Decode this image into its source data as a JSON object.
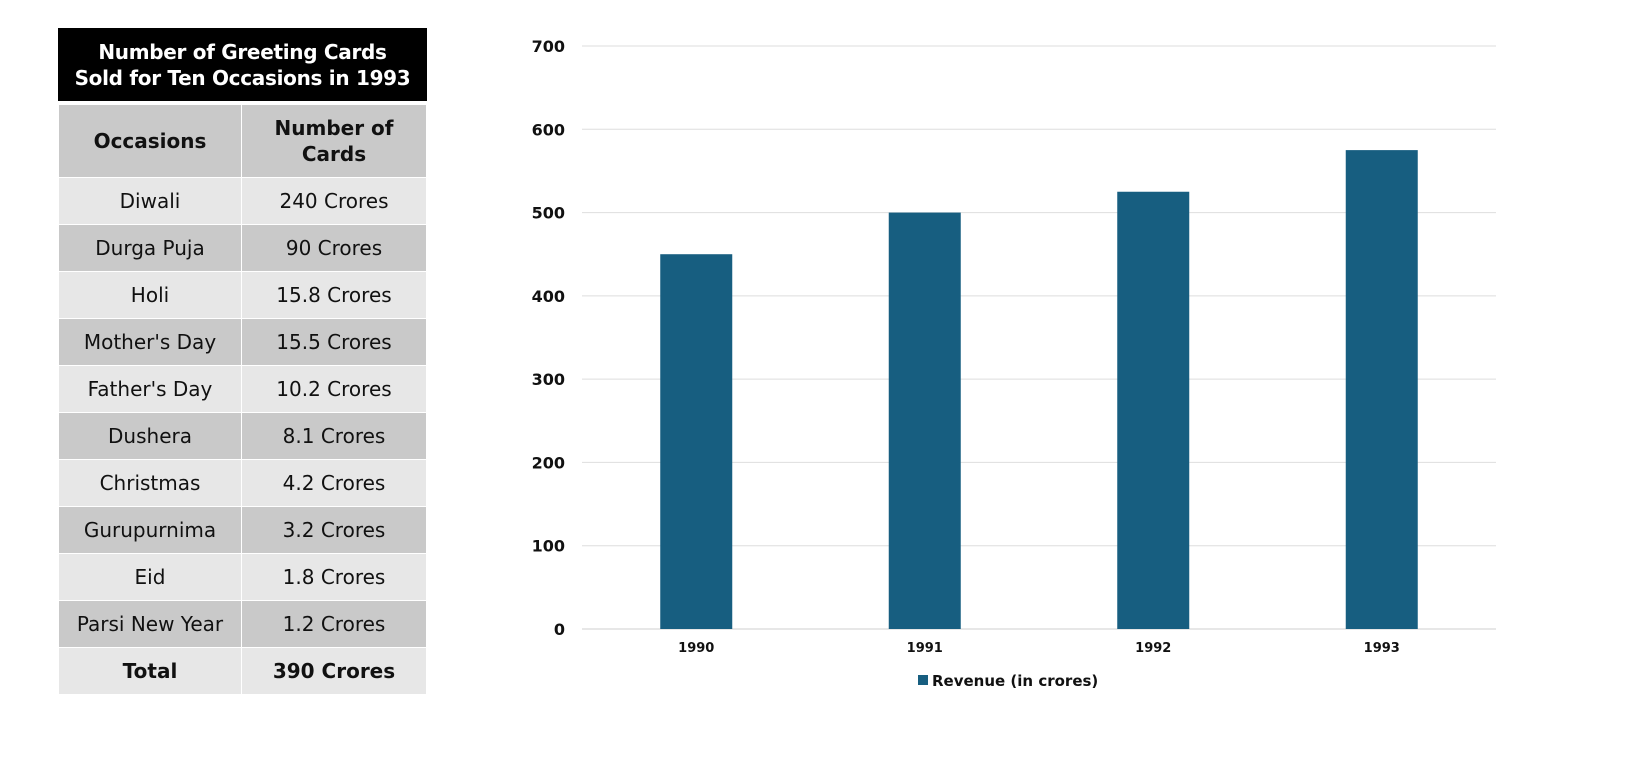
{
  "table": {
    "title_line1": "Number of Greeting Cards",
    "title_line2": "Sold for Ten Occasions in 1993",
    "headers": [
      "Occasions",
      "Number of Cards"
    ],
    "rows": [
      [
        "Diwali",
        "240 Crores"
      ],
      [
        "Durga Puja",
        "90 Crores"
      ],
      [
        "Holi",
        "15.8 Crores"
      ],
      [
        "Mother's Day",
        "15.5 Crores"
      ],
      [
        "Father's Day",
        "10.2 Crores"
      ],
      [
        "Dushera",
        "8.1 Crores"
      ],
      [
        "Christmas",
        "4.2 Crores"
      ],
      [
        "Gurupurnima",
        "3.2 Crores"
      ],
      [
        "Eid",
        "1.8 Crores"
      ],
      [
        "Parsi New Year",
        "1.2 Crores"
      ]
    ],
    "total": [
      "Total",
      "390 Crores"
    ]
  },
  "chart_data": {
    "type": "bar",
    "title": "",
    "xlabel": "",
    "ylabel": "",
    "categories": [
      "1990",
      "1991",
      "1992",
      "1993"
    ],
    "series": [
      {
        "name": "Revenue (in crores)",
        "values": [
          450,
          500,
          525,
          575
        ],
        "color": "#175e80"
      }
    ],
    "ylim": [
      0,
      700
    ],
    "yticks": [
      0,
      100,
      200,
      300,
      400,
      500,
      600,
      700
    ],
    "grid": true,
    "legend": "bottom"
  }
}
